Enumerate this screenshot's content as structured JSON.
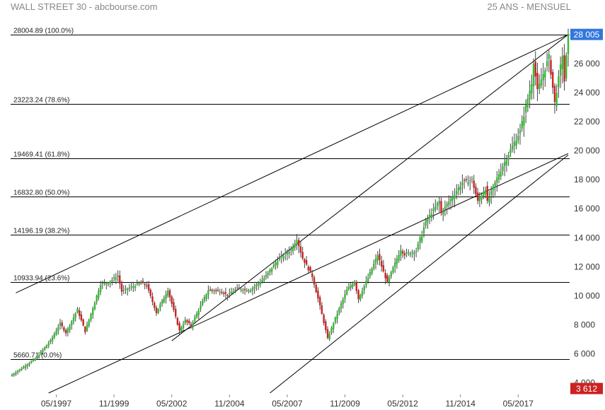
{
  "header": {
    "title": "WALL STREET 30 - abcbourse.com",
    "period": "25 ANS - MENSUEL"
  },
  "colors": {
    "up": "#33bb33",
    "down": "#cc2222",
    "last_badge": "#3377dd",
    "low_badge": "#cc2222",
    "lines": "#000000",
    "axis_text": "#333333"
  },
  "chart_data": {
    "type": "candlestick",
    "title": "WALL STREET 30 - abcbourse.com",
    "subtitle": "25 ANS - MENSUEL",
    "x_range": [
      "1995-06",
      "2019-07"
    ],
    "y_range": [
      3300,
      29500
    ],
    "y_ticks": [
      "4 000",
      "6 000",
      "8 000",
      "10 000",
      "12 000",
      "14 000",
      "16 000",
      "18 000",
      "20 000",
      "22 000",
      "24 000",
      "26 000"
    ],
    "y_tick_values": [
      4000,
      6000,
      8000,
      10000,
      12000,
      14000,
      16000,
      18000,
      20000,
      22000,
      24000,
      26000
    ],
    "x_ticks": [
      {
        "label": "05/1997",
        "date": "1997-05"
      },
      {
        "label": "11/1999",
        "date": "1999-11"
      },
      {
        "label": "05/2002",
        "date": "2002-05"
      },
      {
        "label": "11/2004",
        "date": "2004-11"
      },
      {
        "label": "05/2007",
        "date": "2007-05"
      },
      {
        "label": "11/2009",
        "date": "2009-11"
      },
      {
        "label": "05/2012",
        "date": "2012-05"
      },
      {
        "label": "11/2014",
        "date": "2014-11"
      },
      {
        "label": "05/2017",
        "date": "2017-05"
      }
    ],
    "last_value": {
      "label": "28 005",
      "value": 28005
    },
    "low_value": {
      "label": "3 612",
      "value": 3612
    },
    "fibonacci_levels": [
      {
        "label": "28004.89  (100.0%)",
        "value": 28004.89
      },
      {
        "label": "23223.24  (78.6%)",
        "value": 23223.24
      },
      {
        "label": "19469.41  (61.8%)",
        "value": 19469.41
      },
      {
        "label": "16832.80  (50.0%)",
        "value": 16832.8
      },
      {
        "label": "14196.19  (38.2%)",
        "value": 14196.19
      },
      {
        "label": "10933.94  (23.6%)",
        "value": 10933.94
      },
      {
        "label": "5660.71  (0.0%)",
        "value": 5660.71
      }
    ],
    "trendlines": [
      {
        "from": {
          "date": "1995-08",
          "value": 10200
        },
        "to": {
          "date": "2019-07",
          "value": 28000
        }
      },
      {
        "from": {
          "date": "2002-05",
          "value": 6900
        },
        "to": {
          "date": "2019-07",
          "value": 28000
        }
      },
      {
        "from": {
          "date": "1997-01",
          "value": 3300
        },
        "to": {
          "date": "2019-07",
          "value": 19800
        }
      },
      {
        "from": {
          "date": "2006-08",
          "value": 3300
        },
        "to": {
          "date": "2019-07",
          "value": 19700
        }
      }
    ],
    "series": [
      {
        "points": [
          {
            "date": "1995-06",
            "value": 4550
          },
          {
            "date": "1996-06",
            "value": 5650
          },
          {
            "date": "1997-02",
            "value": 6900
          },
          {
            "date": "1997-07",
            "value": 8100
          },
          {
            "date": "1997-10",
            "value": 7450
          },
          {
            "date": "1998-04",
            "value": 9050
          },
          {
            "date": "1998-08",
            "value": 7550
          },
          {
            "date": "1998-12",
            "value": 9150
          },
          {
            "date": "1999-04",
            "value": 10800
          },
          {
            "date": "1999-08",
            "value": 10900
          },
          {
            "date": "2000-01",
            "value": 11400
          },
          {
            "date": "2000-03",
            "value": 10300
          },
          {
            "date": "2000-09",
            "value": 10650
          },
          {
            "date": "2001-01",
            "value": 10900
          },
          {
            "date": "2001-04",
            "value": 10700
          },
          {
            "date": "2001-09",
            "value": 8850
          },
          {
            "date": "2002-03",
            "value": 10400
          },
          {
            "date": "2002-09",
            "value": 7600
          },
          {
            "date": "2002-12",
            "value": 8300
          },
          {
            "date": "2003-03",
            "value": 7950
          },
          {
            "date": "2003-12",
            "value": 10400
          },
          {
            "date": "2004-06",
            "value": 10350
          },
          {
            "date": "2004-10",
            "value": 10050
          },
          {
            "date": "2005-03",
            "value": 10500
          },
          {
            "date": "2005-10",
            "value": 10400
          },
          {
            "date": "2006-05",
            "value": 11200
          },
          {
            "date": "2006-12",
            "value": 12450
          },
          {
            "date": "2007-07",
            "value": 13200
          },
          {
            "date": "2007-10",
            "value": 13900
          },
          {
            "date": "2008-01",
            "value": 12600
          },
          {
            "date": "2008-06",
            "value": 11350
          },
          {
            "date": "2008-10",
            "value": 9300
          },
          {
            "date": "2009-02",
            "value": 7060
          },
          {
            "date": "2009-06",
            "value": 8450
          },
          {
            "date": "2009-12",
            "value": 10400
          },
          {
            "date": "2010-04",
            "value": 11000
          },
          {
            "date": "2010-06",
            "value": 9800
          },
          {
            "date": "2010-12",
            "value": 11550
          },
          {
            "date": "2011-04",
            "value": 12800
          },
          {
            "date": "2011-09",
            "value": 10900
          },
          {
            "date": "2012-04",
            "value": 13200
          },
          {
            "date": "2012-06",
            "value": 12850
          },
          {
            "date": "2012-12",
            "value": 13100
          },
          {
            "date": "2013-05",
            "value": 15100
          },
          {
            "date": "2013-12",
            "value": 16500
          },
          {
            "date": "2014-01",
            "value": 15700
          },
          {
            "date": "2014-12",
            "value": 17800
          },
          {
            "date": "2015-05",
            "value": 18000
          },
          {
            "date": "2015-08",
            "value": 16500
          },
          {
            "date": "2015-12",
            "value": 17400
          },
          {
            "date": "2016-01",
            "value": 16450
          },
          {
            "date": "2016-07",
            "value": 18400
          },
          {
            "date": "2016-12",
            "value": 19760
          },
          {
            "date": "2017-06",
            "value": 21350
          },
          {
            "date": "2017-12",
            "value": 24700
          },
          {
            "date": "2018-01",
            "value": 26150
          },
          {
            "date": "2018-03",
            "value": 24100
          },
          {
            "date": "2018-09",
            "value": 26450
          },
          {
            "date": "2018-12",
            "value": 23300
          },
          {
            "date": "2019-04",
            "value": 26600
          },
          {
            "date": "2019-05",
            "value": 24800
          },
          {
            "date": "2019-07",
            "value": 28005
          }
        ]
      }
    ]
  }
}
